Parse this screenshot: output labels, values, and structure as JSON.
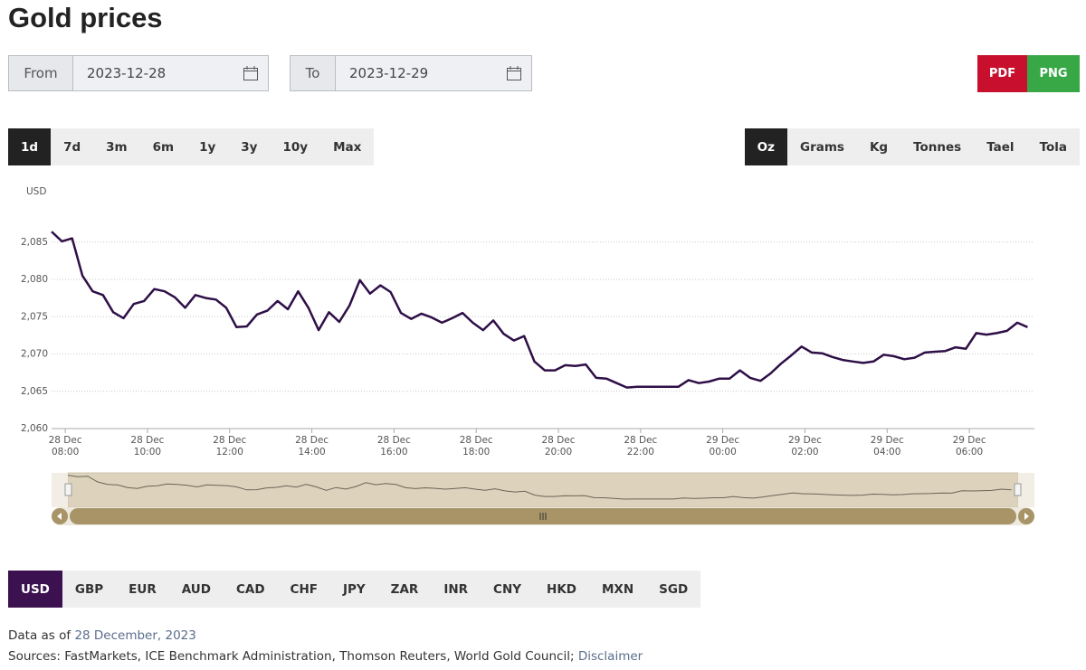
{
  "header": {
    "title": "Gold prices"
  },
  "date_range": {
    "from_label": "From",
    "from": "2023-12-28",
    "to_label": "To",
    "to": "2023-12-29"
  },
  "export": [
    "PDF",
    "PNG"
  ],
  "periods": [
    "1d",
    "7d",
    "3m",
    "6m",
    "1y",
    "3y",
    "10y",
    "Max"
  ],
  "units": [
    "Oz",
    "Grams",
    "Kg",
    "Tonnes",
    "Tael",
    "Tola"
  ],
  "currencies": [
    "USD",
    "GBP",
    "EUR",
    "AUD",
    "CAD",
    "CHF",
    "JPY",
    "ZAR",
    "INR",
    "CNY",
    "HKD",
    "MXN",
    "SGD"
  ],
  "footer": {
    "as_of_label": "Data as of",
    "as_of": "28 December, 2023",
    "sources": "Sources: FastMarkets, ICE Benchmark Administration, Thomson Reuters, World Gold Council;",
    "disclaimer": "Disclaimer"
  },
  "chart_data": {
    "type": "line",
    "y_label": "USD",
    "color": "#2e0f47",
    "grid": true,
    "x": [
      "28 Dec 07:40",
      "28 Dec 07:55",
      "28 Dec 08:10",
      "28 Dec 08:25",
      "28 Dec 08:40",
      "28 Dec 08:55",
      "28 Dec 09:10",
      "28 Dec 09:25",
      "28 Dec 09:40",
      "28 Dec 09:55",
      "28 Dec 10:10",
      "28 Dec 10:25",
      "28 Dec 10:40",
      "28 Dec 10:55",
      "28 Dec 11:10",
      "28 Dec 11:25",
      "28 Dec 11:40",
      "28 Dec 11:55",
      "28 Dec 12:10",
      "28 Dec 12:25",
      "28 Dec 12:40",
      "28 Dec 12:55",
      "28 Dec 13:10",
      "28 Dec 13:25",
      "28 Dec 13:40",
      "28 Dec 13:55",
      "28 Dec 14:10",
      "28 Dec 14:25",
      "28 Dec 14:40",
      "28 Dec 14:55",
      "28 Dec 15:10",
      "28 Dec 15:25",
      "28 Dec 15:40",
      "28 Dec 15:55",
      "28 Dec 16:10",
      "28 Dec 16:25",
      "28 Dec 16:40",
      "28 Dec 16:55",
      "28 Dec 17:10",
      "28 Dec 17:25",
      "28 Dec 17:40",
      "28 Dec 17:55",
      "28 Dec 18:10",
      "28 Dec 18:25",
      "28 Dec 18:40",
      "28 Dec 18:55",
      "28 Dec 19:10",
      "28 Dec 19:25",
      "28 Dec 19:40",
      "28 Dec 19:55",
      "28 Dec 20:10",
      "28 Dec 20:25",
      "28 Dec 20:40",
      "28 Dec 20:55",
      "28 Dec 21:10",
      "28 Dec 21:25",
      "28 Dec 21:40",
      "28 Dec 21:55",
      "28 Dec 22:10",
      "28 Dec 22:25",
      "28 Dec 22:40",
      "28 Dec 22:55",
      "28 Dec 23:10",
      "28 Dec 23:25",
      "28 Dec 23:40",
      "28 Dec 23:55",
      "29 Dec 00:10",
      "29 Dec 00:25",
      "29 Dec 00:40",
      "29 Dec 00:55",
      "29 Dec 01:10",
      "29 Dec 01:25",
      "29 Dec 01:40",
      "29 Dec 01:55",
      "29 Dec 02:10",
      "29 Dec 02:25",
      "29 Dec 02:40",
      "29 Dec 02:55",
      "29 Dec 03:10",
      "29 Dec 03:25",
      "29 Dec 03:40",
      "29 Dec 03:55",
      "29 Dec 04:10",
      "29 Dec 04:25",
      "29 Dec 04:40",
      "29 Dec 04:55",
      "29 Dec 05:10",
      "29 Dec 05:25",
      "29 Dec 05:40",
      "29 Dec 05:55",
      "29 Dec 06:10",
      "29 Dec 06:25",
      "29 Dec 06:40",
      "29 Dec 06:55",
      "29 Dec 07:10",
      "29 Dec 07:25"
    ],
    "values": [
      2086.4,
      2085.1,
      2085.5,
      2080.5,
      2078.4,
      2077.9,
      2075.6,
      2074.8,
      2076.7,
      2077.1,
      2078.7,
      2078.4,
      2077.6,
      2076.2,
      2077.9,
      2077.5,
      2077.3,
      2076.2,
      2073.6,
      2073.7,
      2075.3,
      2075.8,
      2077.1,
      2076.0,
      2078.4,
      2076.2,
      2073.2,
      2075.6,
      2074.3,
      2076.5,
      2079.9,
      2078.1,
      2079.2,
      2078.3,
      2075.5,
      2074.7,
      2075.4,
      2074.9,
      2074.2,
      2074.8,
      2075.5,
      2074.2,
      2073.2,
      2074.5,
      2072.7,
      2071.8,
      2072.4,
      2069.0,
      2067.8,
      2067.8,
      2068.5,
      2068.4,
      2068.6,
      2066.8,
      2066.7,
      2066.1,
      2065.5,
      2065.6,
      2065.6,
      2065.6,
      2065.6,
      2065.6,
      2066.5,
      2066.1,
      2066.3,
      2066.7,
      2066.7,
      2067.8,
      2066.8,
      2066.4,
      2067.4,
      2068.7,
      2069.8,
      2071.0,
      2070.2,
      2070.1,
      2069.6,
      2069.2,
      2069.0,
      2068.8,
      2069.0,
      2069.9,
      2069.7,
      2069.3,
      2069.5,
      2070.2,
      2070.3,
      2070.4,
      2070.9,
      2070.7,
      2072.8,
      2072.6,
      2072.8,
      2073.1,
      2074.2,
      2073.6
    ],
    "xlim": [
      "28 Dec 07:40",
      "29 Dec 07:35"
    ],
    "xticks": [
      "28 Dec 08:00",
      "28 Dec 10:00",
      "28 Dec 12:00",
      "28 Dec 14:00",
      "28 Dec 16:00",
      "28 Dec 18:00",
      "28 Dec 20:00",
      "28 Dec 22:00",
      "29 Dec 00:00",
      "29 Dec 02:00",
      "29 Dec 04:00",
      "29 Dec 06:00"
    ],
    "ylim": [
      2060,
      2090
    ],
    "yticks": [
      {
        "value": 2060,
        "label": "2,060"
      },
      {
        "value": 2065,
        "label": "2,065"
      },
      {
        "value": 2070,
        "label": "2,070"
      },
      {
        "value": 2075,
        "label": "2,075"
      },
      {
        "value": 2080,
        "label": "2,080"
      },
      {
        "value": 2085,
        "label": "2,085"
      }
    ]
  }
}
